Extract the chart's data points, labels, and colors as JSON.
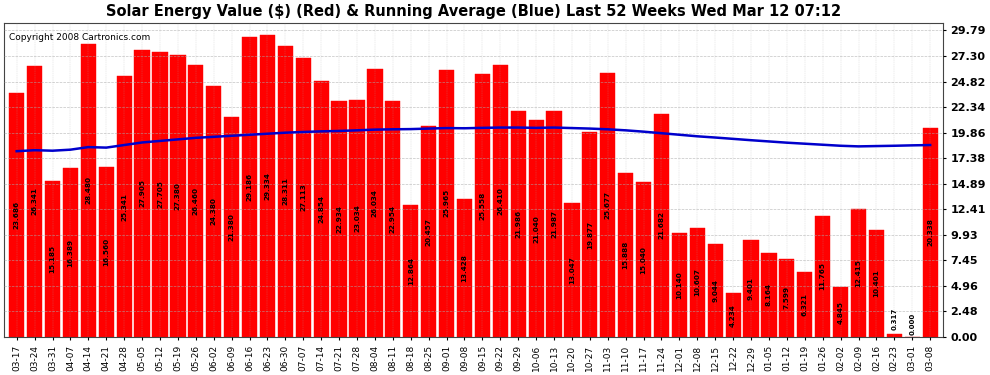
{
  "title": "Solar Energy Value ($) (Red) & Running Average (Blue) Last 52 Weeks Wed Mar 12 07:12",
  "copyright": "Copyright 2008 Cartronics.com",
  "bar_color": "#ff0000",
  "line_color": "#0000cc",
  "background_color": "#ffffff",
  "plot_bg_color": "#ffffff",
  "grid_color": "#aaaaaa",
  "ytick_labels": [
    "0.00",
    "2.48",
    "4.96",
    "7.45",
    "9.93",
    "12.41",
    "14.89",
    "17.38",
    "19.86",
    "22.34",
    "24.82",
    "27.30",
    "29.79"
  ],
  "ytick_values": [
    0.0,
    2.48,
    4.96,
    7.45,
    9.93,
    12.41,
    14.89,
    17.38,
    19.86,
    22.34,
    24.82,
    27.3,
    29.79
  ],
  "ylim": [
    0.0,
    30.5
  ],
  "categories": [
    "03-17",
    "03-24",
    "03-31",
    "04-07",
    "04-14",
    "04-21",
    "04-28",
    "05-05",
    "05-12",
    "05-19",
    "05-26",
    "06-02",
    "06-09",
    "06-16",
    "06-23",
    "06-30",
    "07-07",
    "07-14",
    "07-21",
    "07-28",
    "08-04",
    "08-11",
    "08-18",
    "08-25",
    "09-01",
    "09-08",
    "09-15",
    "09-22",
    "09-29",
    "10-06",
    "10-13",
    "10-20",
    "10-27",
    "11-03",
    "11-10",
    "11-17",
    "11-24",
    "12-01",
    "12-08",
    "12-15",
    "12-22",
    "12-29",
    "01-05",
    "01-12",
    "01-19",
    "01-26",
    "02-02",
    "02-09",
    "02-16",
    "02-23",
    "03-01",
    "03-08"
  ],
  "bar_values": [
    23.686,
    26.341,
    15.185,
    16.389,
    28.48,
    16.56,
    25.341,
    27.905,
    27.705,
    27.38,
    26.46,
    24.38,
    21.38,
    29.186,
    29.334,
    28.311,
    27.113,
    24.854,
    22.934,
    23.034,
    26.034,
    22.954,
    12.864,
    20.457,
    25.965,
    13.428,
    25.558,
    26.41,
    21.986,
    21.04,
    21.987,
    13.047,
    19.877,
    25.677,
    15.888,
    15.04,
    21.682,
    10.14,
    10.607,
    9.044,
    4.234,
    9.401,
    8.164,
    7.599,
    6.321,
    11.765,
    4.845,
    12.415,
    10.401,
    0.317,
    0.0,
    20.338
  ],
  "bar_labels": [
    "23.686",
    "26.341",
    "15.185",
    "16.389",
    "28.480",
    "16.560",
    "25.341",
    "27.905",
    "27.705",
    "27.380",
    "26.460",
    "24.380",
    "21.380",
    "29.186",
    "29.334",
    "28.311",
    "27.113",
    "24.854",
    "22.934",
    "23.034",
    "26.034",
    "22.954",
    "12.864",
    "20.457",
    "25.965",
    "13.428",
    "25.558",
    "26.410",
    "21.986",
    "21.040",
    "21.987",
    "13.047",
    "19.877",
    "25.677",
    "15.888",
    "15.040",
    "21.682",
    "10.140",
    "10.607",
    "9.044",
    "4.234",
    "9.401",
    "8.164",
    "7.599",
    "6.321",
    "11.765",
    "4.845",
    "12.415",
    "10.401",
    "0.317",
    "0.000",
    "20.338"
  ],
  "running_avg": [
    18.05,
    18.15,
    18.1,
    18.2,
    18.45,
    18.4,
    18.65,
    18.9,
    19.05,
    19.2,
    19.35,
    19.45,
    19.55,
    19.65,
    19.75,
    19.85,
    19.92,
    19.98,
    20.02,
    20.08,
    20.15,
    20.18,
    20.2,
    20.25,
    20.3,
    20.28,
    20.32,
    20.35,
    20.35,
    20.32,
    20.35,
    20.3,
    20.25,
    20.18,
    20.08,
    19.95,
    19.8,
    19.65,
    19.5,
    19.38,
    19.25,
    19.12,
    19.0,
    18.88,
    18.78,
    18.68,
    18.58,
    18.52,
    18.55,
    18.58,
    18.62,
    18.65
  ]
}
